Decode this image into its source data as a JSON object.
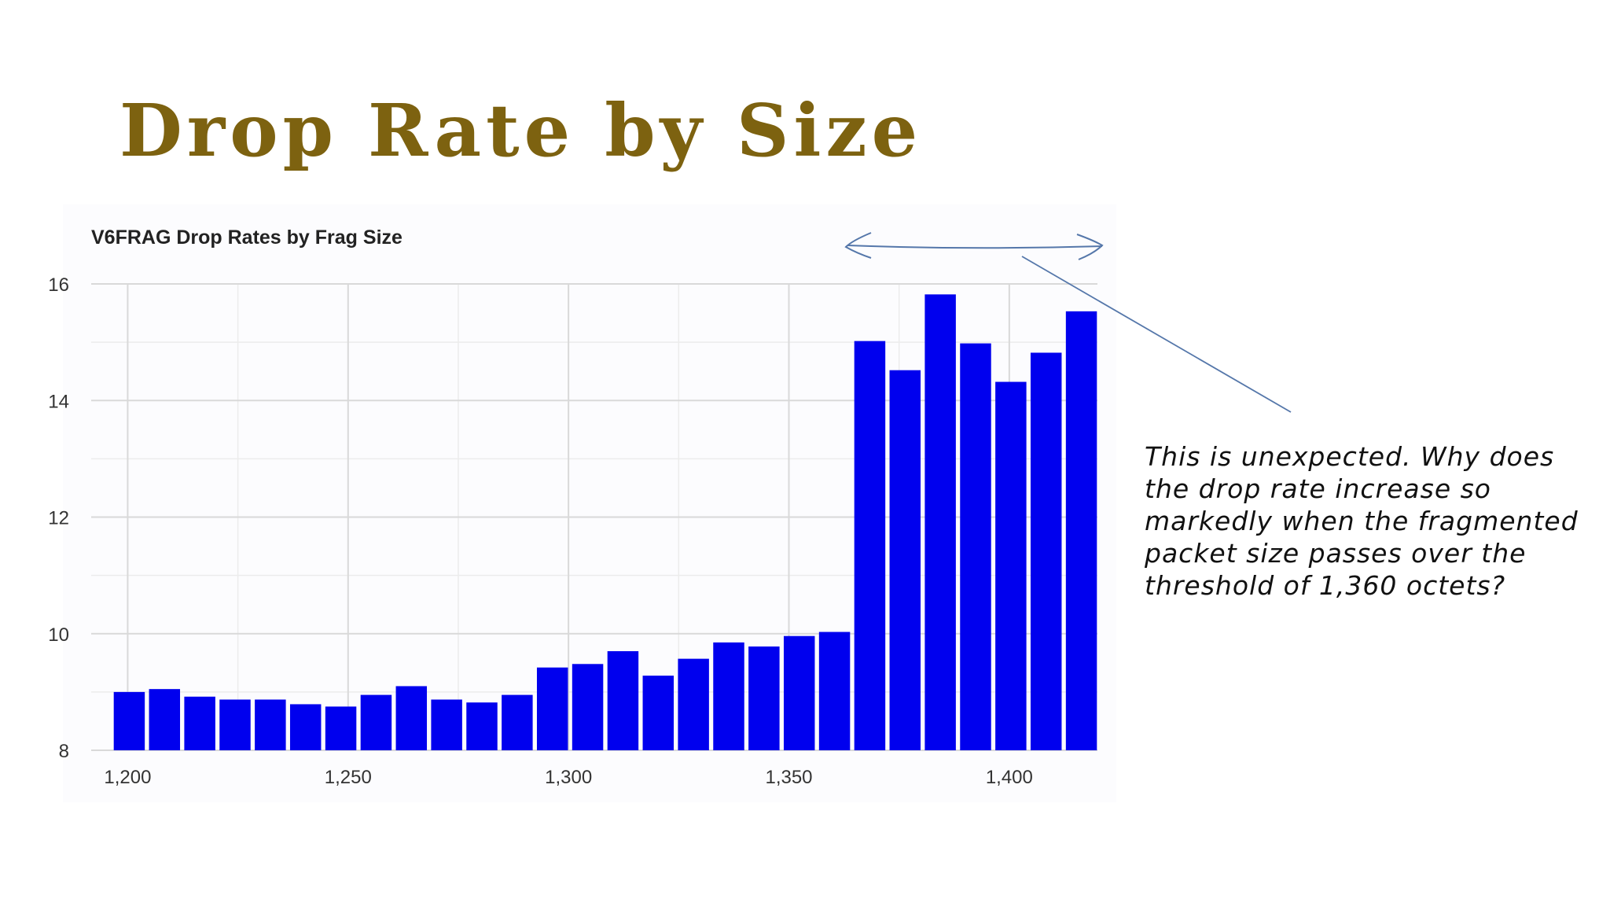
{
  "slide": {
    "title": "Drop Rate by Size",
    "note": "This is unexpected. Why does the drop rate increase so markedly when the fragmented packet size passes over the threshold of 1,360 octets?"
  },
  "colors": {
    "title": "#7d6210",
    "bar": "#0000ee",
    "grid": "#d9d9d9",
    "annotation": "#5577aa"
  },
  "chart_data": {
    "type": "bar",
    "title": "V6FRAG Drop Rates by Frag Size",
    "xlabel": "",
    "ylabel": "",
    "x": [
      1200,
      1208,
      1216,
      1224,
      1232,
      1240,
      1248,
      1256,
      1264,
      1272,
      1280,
      1288,
      1296,
      1304,
      1312,
      1320,
      1328,
      1336,
      1344,
      1352,
      1360,
      1368,
      1376,
      1384,
      1392,
      1400,
      1408,
      1416
    ],
    "values": [
      9.0,
      9.05,
      8.92,
      8.87,
      8.87,
      8.79,
      8.75,
      8.95,
      9.1,
      8.87,
      8.82,
      8.95,
      9.42,
      9.48,
      9.7,
      9.28,
      9.57,
      9.85,
      9.78,
      9.96,
      10.03,
      15.02,
      14.52,
      15.82,
      14.98,
      14.32,
      14.82,
      15.53
    ],
    "xlim": [
      1196,
      1420
    ],
    "ylim": [
      8,
      16
    ],
    "xticks": [
      1200,
      1250,
      1300,
      1350,
      1400
    ],
    "xtick_labels": [
      "1,200",
      "1,250",
      "1,300",
      "1,350",
      "1,400"
    ],
    "yticks": [
      8,
      10,
      12,
      14,
      16
    ],
    "ytick_labels": [
      "8",
      "10",
      "12",
      "14",
      "16"
    ],
    "grid": true,
    "legend": "none",
    "annotation": "double-headed arrow spanning 1,360–1,420 with a leader line to the note"
  }
}
